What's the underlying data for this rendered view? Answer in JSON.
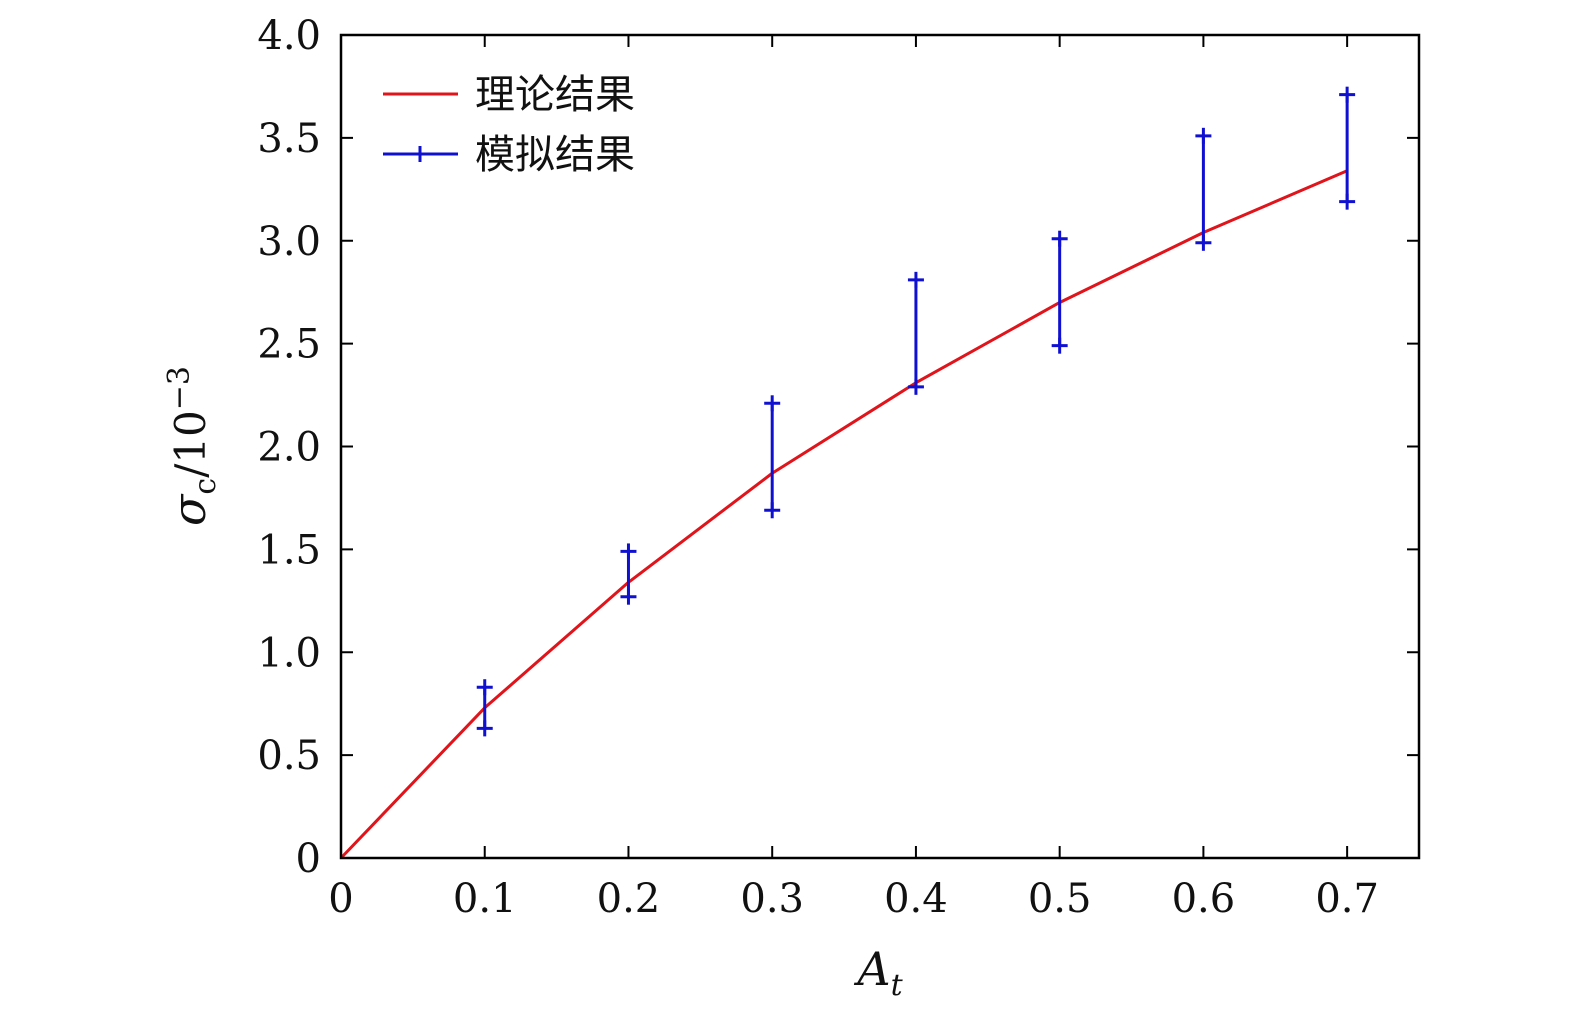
{
  "chart_data": {
    "type": "line",
    "x_axis": {
      "label": "A",
      "label_sub": "t",
      "min": 0,
      "max": 0.75,
      "ticks": [
        0,
        0.1,
        0.2,
        0.3,
        0.4,
        0.5,
        0.6,
        0.7
      ],
      "tick_labels": [
        "0",
        "0.1",
        "0.2",
        "0.3",
        "0.4",
        "0.5",
        "0.6",
        "0.7"
      ]
    },
    "y_axis": {
      "label_sigma": "σ",
      "label_sub": "c",
      "label_rest": "/10",
      "label_sup": "−3",
      "min": 0,
      "max": 4.0,
      "ticks": [
        0,
        0.5,
        1.0,
        1.5,
        2.0,
        2.5,
        3.0,
        3.5,
        4.0
      ],
      "tick_labels": [
        "0",
        "0.5",
        "1.0",
        "1.5",
        "2.0",
        "2.5",
        "3.0",
        "3.5",
        "4.0"
      ]
    },
    "grid": false,
    "legend": {
      "position": "top-left",
      "entries": [
        "理论结果",
        "模拟结果"
      ]
    },
    "series": [
      {
        "name": "理论结果",
        "kind": "line",
        "color": "#e0141a",
        "x": [
          0,
          0.1,
          0.2,
          0.3,
          0.4,
          0.5,
          0.6,
          0.7
        ],
        "y": [
          0,
          0.73,
          1.34,
          1.87,
          2.31,
          2.7,
          3.04,
          3.34
        ]
      },
      {
        "name": "模拟结果",
        "kind": "errorbar",
        "color": "#1010d0",
        "x": [
          0.1,
          0.2,
          0.3,
          0.4,
          0.5,
          0.6,
          0.7
        ],
        "y_low": [
          0.63,
          1.27,
          1.69,
          2.29,
          2.49,
          2.99,
          3.19
        ],
        "y_high": [
          0.83,
          1.49,
          2.21,
          2.81,
          3.01,
          3.51,
          3.71
        ]
      }
    ]
  }
}
